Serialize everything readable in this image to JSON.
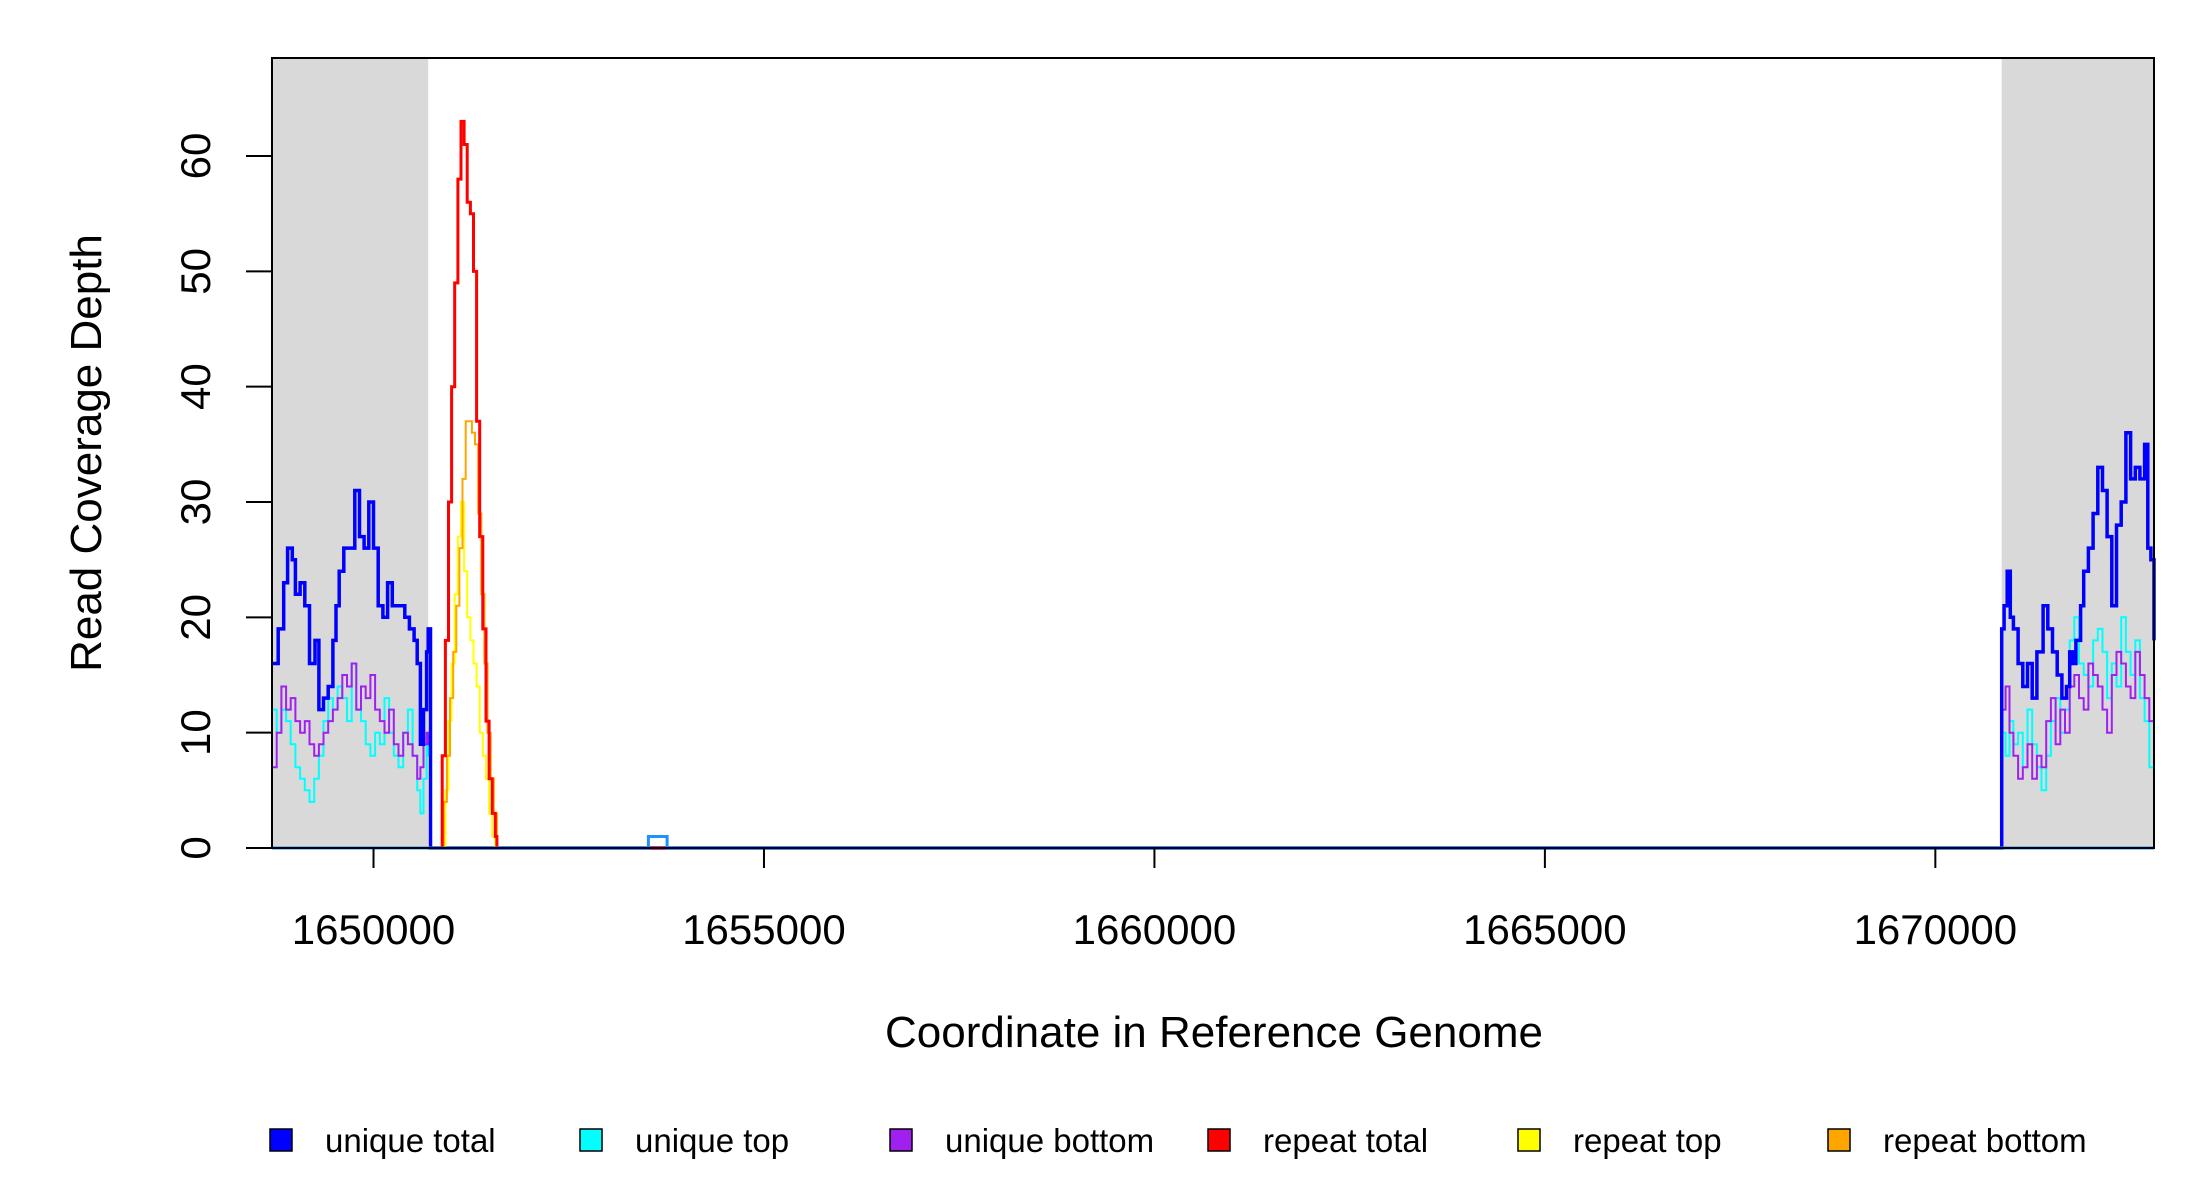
{
  "chart_data": {
    "type": "line",
    "title": "",
    "xlabel": "Coordinate in Reference Genome",
    "ylabel": "Read Coverage Depth",
    "xlim": [
      1648700,
      1672800
    ],
    "ylim": [
      0,
      68.5
    ],
    "x_ticks": [
      1650000,
      1655000,
      1660000,
      1665000,
      1670000
    ],
    "x_tick_labels": [
      "1650000",
      "1655000",
      "1660000",
      "1665000",
      "1670000"
    ],
    "y_ticks": [
      0,
      10,
      20,
      30,
      40,
      50,
      60
    ],
    "y_tick_labels": [
      "0",
      "10",
      "20",
      "30",
      "40",
      "50",
      "60"
    ],
    "shaded_regions": [
      {
        "start": 1648700,
        "end": 1650700,
        "color": "#d9d9d9"
      },
      {
        "start": 1670850,
        "end": 1672800,
        "color": "#d9d9d9"
      }
    ],
    "legend_position": "bottom",
    "legend": [
      {
        "label": "unique total",
        "color": "#0000ff"
      },
      {
        "label": "unique top",
        "color": "#00ffff"
      },
      {
        "label": "unique bottom",
        "color": "#a020f0"
      },
      {
        "label": "repeat total",
        "color": "#ff0000"
      },
      {
        "label": "repeat top",
        "color": "#ffff00"
      },
      {
        "label": "repeat bottom",
        "color": "#ffa500"
      }
    ],
    "series": [
      {
        "name": "unique total",
        "color": "#0000ff",
        "width": 3.5,
        "x": [
          1648700,
          1648780,
          1648850,
          1648900,
          1648960,
          1649000,
          1649060,
          1649120,
          1649180,
          1649250,
          1649300,
          1649360,
          1649420,
          1649480,
          1649520,
          1649560,
          1649620,
          1649700,
          1649760,
          1649820,
          1649880,
          1649940,
          1650000,
          1650060,
          1650120,
          1650180,
          1650240,
          1650300,
          1650400,
          1650460,
          1650520,
          1650560,
          1650600,
          1650640,
          1650680,
          1650700,
          1650730,
          1670800,
          1670850,
          1670880,
          1670920,
          1670960,
          1671000,
          1671060,
          1671120,
          1671180,
          1671240,
          1671300,
          1671380,
          1671440,
          1671500,
          1671560,
          1671620,
          1671680,
          1671720,
          1671760,
          1671800,
          1671860,
          1671900,
          1671960,
          1672020,
          1672080,
          1672140,
          1672200,
          1672260,
          1672320,
          1672380,
          1672440,
          1672500,
          1672560,
          1672620,
          1672680,
          1672720,
          1672760,
          1672800
        ],
        "y": [
          16,
          19,
          23,
          26,
          25,
          22,
          23,
          21,
          16,
          18,
          12,
          13,
          14,
          18,
          21,
          24,
          26,
          26,
          31,
          27,
          26,
          30,
          26,
          21,
          20,
          23,
          21,
          21,
          20,
          19,
          18,
          16,
          9,
          12,
          17,
          19,
          0,
          0,
          19,
          21,
          24,
          20,
          19,
          16,
          14,
          16,
          13,
          17,
          21,
          19,
          17,
          15,
          13,
          14,
          17,
          16,
          18,
          21,
          24,
          26,
          29,
          33,
          31,
          27,
          21,
          28,
          30,
          36,
          32,
          33,
          32,
          35,
          26,
          25,
          18
        ]
      },
      {
        "name": "unique top",
        "color": "#00ffff",
        "width": 2,
        "x": [
          1648700,
          1648760,
          1648820,
          1648880,
          1648940,
          1649000,
          1649060,
          1649120,
          1649180,
          1649240,
          1649300,
          1649360,
          1649420,
          1649480,
          1649540,
          1649600,
          1649660,
          1649720,
          1649780,
          1649840,
          1649900,
          1649960,
          1650020,
          1650080,
          1650140,
          1650200,
          1650260,
          1650320,
          1650380,
          1650440,
          1650500,
          1650560,
          1650600,
          1650640,
          1650680,
          1650700,
          1650730,
          1670800,
          1670850,
          1670900,
          1670950,
          1671000,
          1671060,
          1671120,
          1671180,
          1671240,
          1671300,
          1671360,
          1671420,
          1671480,
          1671540,
          1671600,
          1671660,
          1671720,
          1671780,
          1671840,
          1671900,
          1671960,
          1672020,
          1672080,
          1672140,
          1672200,
          1672260,
          1672320,
          1672380,
          1672440,
          1672500,
          1672560,
          1672620,
          1672680,
          1672740,
          1672800
        ],
        "y": [
          12,
          10,
          12,
          11,
          9,
          7,
          6,
          5,
          4,
          6,
          8,
          11,
          13,
          12,
          14,
          13,
          11,
          16,
          12,
          11,
          9,
          8,
          10,
          9,
          13,
          10,
          8,
          7,
          10,
          12,
          8,
          5,
          3,
          6,
          9,
          8,
          0,
          0,
          10,
          8,
          11,
          9,
          10,
          7,
          12,
          9,
          7,
          5,
          8,
          11,
          13,
          10,
          12,
          18,
          20,
          16,
          15,
          14,
          18,
          19,
          17,
          13,
          16,
          14,
          20,
          17,
          15,
          18,
          13,
          11,
          7,
          4
        ]
      },
      {
        "name": "unique bottom",
        "color": "#a020f0",
        "width": 2,
        "x": [
          1648700,
          1648760,
          1648820,
          1648880,
          1648940,
          1649000,
          1649060,
          1649120,
          1649180,
          1649240,
          1649300,
          1649360,
          1649420,
          1649480,
          1649540,
          1649600,
          1649660,
          1649720,
          1649780,
          1649840,
          1649900,
          1649960,
          1650020,
          1650080,
          1650140,
          1650200,
          1650260,
          1650320,
          1650380,
          1650440,
          1650500,
          1650560,
          1650600,
          1650640,
          1650680,
          1650700,
          1650730,
          1670800,
          1670850,
          1670900,
          1670950,
          1671000,
          1671060,
          1671120,
          1671180,
          1671240,
          1671300,
          1671360,
          1671420,
          1671480,
          1671540,
          1671600,
          1671660,
          1671720,
          1671780,
          1671840,
          1671900,
          1671960,
          1672020,
          1672080,
          1672140,
          1672200,
          1672260,
          1672320,
          1672380,
          1672440,
          1672500,
          1672560,
          1672620,
          1672680,
          1672740,
          1672800
        ],
        "y": [
          7,
          10,
          14,
          12,
          13,
          11,
          10,
          11,
          9,
          8,
          9,
          10,
          11,
          12,
          13,
          15,
          14,
          16,
          12,
          14,
          13,
          15,
          12,
          11,
          10,
          12,
          9,
          8,
          10,
          9,
          8,
          6,
          7,
          9,
          10,
          9,
          0,
          0,
          12,
          14,
          10,
          8,
          6,
          7,
          9,
          6,
          8,
          7,
          11,
          13,
          9,
          12,
          10,
          14,
          15,
          13,
          12,
          16,
          15,
          14,
          12,
          10,
          15,
          17,
          16,
          14,
          13,
          17,
          15,
          13,
          11,
          9
        ]
      },
      {
        "name": "repeat total",
        "color": "#ff0000",
        "width": 3,
        "x": [
          1648700,
          1650840,
          1650880,
          1650920,
          1650960,
          1651000,
          1651040,
          1651080,
          1651120,
          1651160,
          1651200,
          1651240,
          1651280,
          1651320,
          1651360,
          1651400,
          1651440,
          1651480,
          1651520,
          1651560,
          1651580,
          1672800
        ],
        "y": [
          0,
          0,
          8,
          18,
          30,
          40,
          49,
          58,
          63,
          61,
          56,
          55,
          50,
          37,
          27,
          19,
          11,
          6,
          3,
          1,
          0,
          0
        ]
      },
      {
        "name": "repeat top",
        "color": "#ffff00",
        "width": 2,
        "x": [
          1648700,
          1650880,
          1650920,
          1650960,
          1651000,
          1651040,
          1651080,
          1651120,
          1651160,
          1651200,
          1651240,
          1651280,
          1651320,
          1651360,
          1651400,
          1651440,
          1651480,
          1651520,
          1651560,
          1672800
        ],
        "y": [
          0,
          0,
          5,
          11,
          16,
          22,
          27,
          30,
          24,
          20,
          18,
          16,
          14,
          10,
          8,
          6,
          3,
          1,
          0,
          0
        ]
      },
      {
        "name": "repeat bottom",
        "color": "#ffa500",
        "width": 2,
        "x": [
          1648700,
          1650860,
          1650900,
          1650940,
          1650980,
          1651020,
          1651060,
          1651100,
          1651140,
          1651180,
          1651220,
          1651260,
          1651300,
          1651340,
          1651380,
          1651420,
          1651460,
          1651500,
          1651540,
          1651580,
          1672800
        ],
        "y": [
          0,
          0,
          4,
          8,
          13,
          17,
          21,
          26,
          32,
          37,
          37,
          36,
          35,
          29,
          22,
          16,
          10,
          6,
          3,
          0,
          0
        ]
      },
      {
        "name": "",
        "color": "#1e90ff",
        "width": 3,
        "x": [
          1648700,
          1653500,
          1653520,
          1653740,
          1653760,
          1672800
        ],
        "y": [
          0,
          0,
          1,
          1,
          0,
          0
        ]
      }
    ]
  }
}
